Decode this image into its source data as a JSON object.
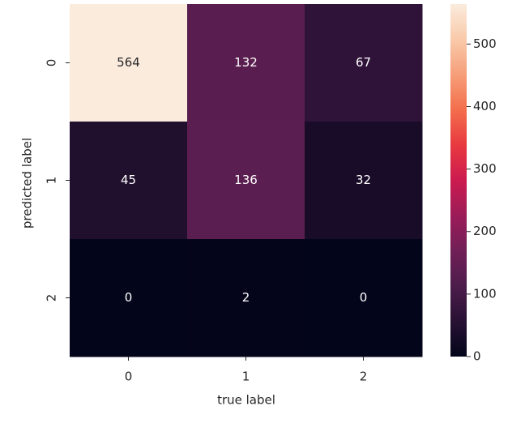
{
  "chart_data": {
    "type": "heatmap",
    "x_label": "true label",
    "y_label": "predicted label",
    "x_categories": [
      "0",
      "1",
      "2"
    ],
    "y_categories": [
      "0",
      "1",
      "2"
    ],
    "values": [
      [
        564,
        132,
        67
      ],
      [
        45,
        136,
        32
      ],
      [
        0,
        2,
        0
      ]
    ],
    "colormap": "rocket",
    "zlim": [
      0,
      564
    ],
    "zticks": [
      0,
      100,
      200,
      300,
      400,
      500
    ]
  }
}
